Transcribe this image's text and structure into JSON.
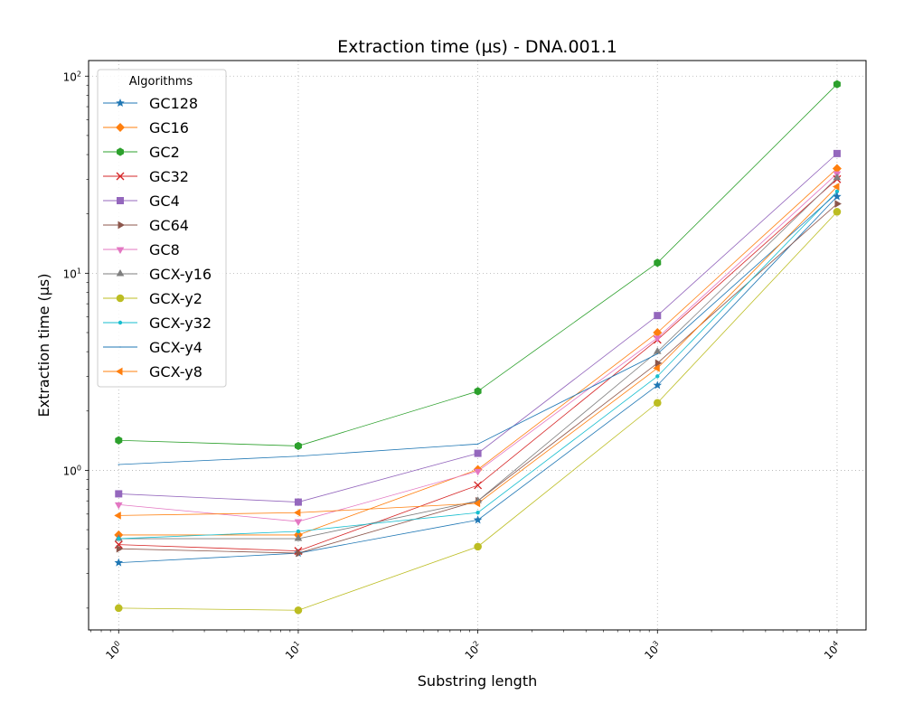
{
  "chart_data": {
    "type": "line",
    "title": "Extraction time (µs) - DNA.001.1",
    "xlabel": "Substring length",
    "ylabel": "Extraction time (µs)",
    "xscale": "log",
    "yscale": "log",
    "xlim": [
      0.68,
      14500
    ],
    "ylim": [
      0.155,
      120
    ],
    "grid": true,
    "legend": {
      "title": "Algorithms",
      "placement": "upper-left"
    },
    "x": [
      1,
      10,
      100,
      1000,
      10000
    ],
    "x_tick_labels": [
      {
        "value": 1,
        "base": "10",
        "exp": "0"
      },
      {
        "value": 10,
        "base": "10",
        "exp": "1"
      },
      {
        "value": 100,
        "base": "10",
        "exp": "2"
      },
      {
        "value": 1000,
        "base": "10",
        "exp": "3"
      },
      {
        "value": 10000,
        "base": "10",
        "exp": "4"
      }
    ],
    "y_tick_labels": [
      {
        "value": 1,
        "base": "10",
        "exp": "0"
      },
      {
        "value": 10,
        "base": "10",
        "exp": "1"
      },
      {
        "value": 100,
        "base": "10",
        "exp": "2"
      }
    ],
    "series": [
      {
        "name": "GC128",
        "color": "#1f77b4",
        "marker": "star",
        "values": [
          0.34,
          0.38,
          0.56,
          2.7,
          24.5
        ]
      },
      {
        "name": "GC16",
        "color": "#ff7f0e",
        "marker": "diamond",
        "values": [
          0.47,
          0.47,
          1.01,
          5.0,
          34.0
        ]
      },
      {
        "name": "GC2",
        "color": "#2ca02c",
        "marker": "hexagon",
        "values": [
          1.42,
          1.33,
          2.52,
          11.3,
          91.0
        ]
      },
      {
        "name": "GC32",
        "color": "#d62728",
        "marker": "x",
        "values": [
          0.42,
          0.39,
          0.84,
          4.6,
          30.0
        ]
      },
      {
        "name": "GC4",
        "color": "#9467bd",
        "marker": "square",
        "values": [
          0.76,
          0.69,
          1.22,
          6.1,
          40.5
        ]
      },
      {
        "name": "GC64",
        "color": "#8c564b",
        "marker": "triangle-right",
        "values": [
          0.4,
          0.38,
          0.7,
          3.5,
          22.5
        ]
      },
      {
        "name": "GC8",
        "color": "#e377c2",
        "marker": "triangle-down",
        "values": [
          0.67,
          0.55,
          0.99,
          4.7,
          32.0
        ]
      },
      {
        "name": "GCX-y16",
        "color": "#7f7f7f",
        "marker": "triangle-up",
        "values": [
          0.45,
          0.45,
          0.7,
          4.0,
          30.5
        ]
      },
      {
        "name": "GCX-y2",
        "color": "#bcbd22",
        "marker": "circle",
        "values": [
          0.2,
          0.195,
          0.41,
          2.2,
          20.5
        ]
      },
      {
        "name": "GCX-y32",
        "color": "#17becf",
        "marker": "point",
        "values": [
          0.45,
          0.49,
          0.61,
          3.0,
          26.0
        ]
      },
      {
        "name": "GCX-y4",
        "color": "#1f77b4",
        "marker": "pixel",
        "values": [
          1.07,
          1.18,
          1.36,
          3.9,
          25.5
        ]
      },
      {
        "name": "GCX-y8",
        "color": "#ff7f0e",
        "marker": "triangle-left",
        "values": [
          0.59,
          0.61,
          0.68,
          3.3,
          27.5
        ]
      }
    ]
  }
}
